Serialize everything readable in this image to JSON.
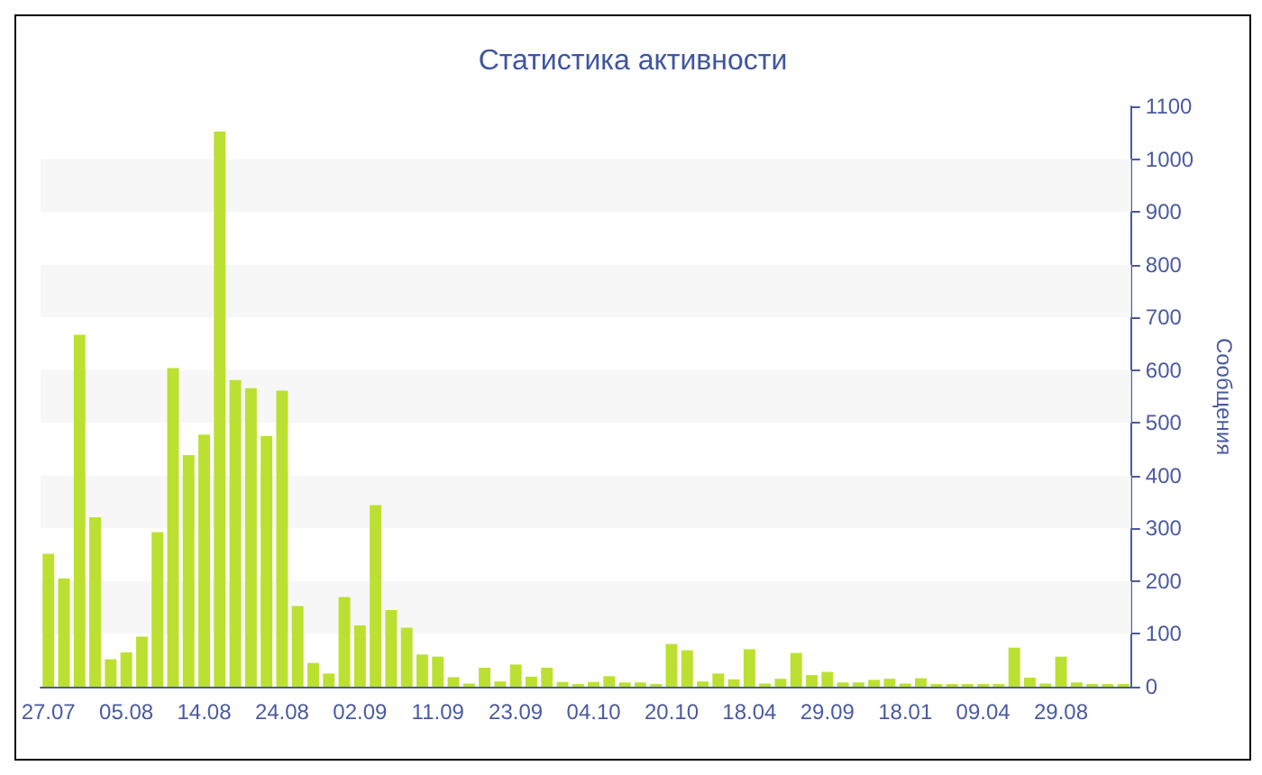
{
  "chart_data": {
    "type": "bar",
    "title": "Статистика активности",
    "ylabel": "Сообщения",
    "categories": [
      "27.07",
      null,
      null,
      null,
      null,
      "05.08",
      null,
      null,
      null,
      null,
      "14.08",
      null,
      null,
      null,
      null,
      "24.08",
      null,
      null,
      null,
      null,
      "02.09",
      null,
      null,
      null,
      null,
      "11.09",
      null,
      null,
      null,
      null,
      "23.09",
      null,
      null,
      null,
      null,
      "04.10",
      null,
      null,
      null,
      null,
      "20.10",
      null,
      null,
      null,
      null,
      "18.04",
      null,
      null,
      null,
      null,
      "29.09",
      null,
      null,
      null,
      null,
      "18.01",
      null,
      null,
      null,
      null,
      "09.04",
      null,
      null,
      null,
      null,
      "29.08",
      null,
      null,
      null,
      null
    ],
    "values": [
      252,
      205,
      667,
      321,
      52,
      65,
      95,
      293,
      604,
      439,
      478,
      1052,
      581,
      566,
      475,
      561,
      153,
      45,
      25,
      170,
      116,
      344,
      145,
      112,
      61,
      57,
      18,
      6,
      36,
      10,
      42,
      19,
      36,
      9,
      5,
      9,
      20,
      8,
      8,
      5,
      81,
      69,
      10,
      25,
      14,
      71,
      6,
      15,
      64,
      22,
      28,
      8,
      8,
      13,
      15,
      6,
      16,
      5,
      5,
      5,
      5,
      5,
      74,
      17,
      6,
      57,
      8,
      5,
      5,
      5
    ],
    "color": "#bce031",
    "ylim": [
      0,
      1100
    ],
    "yticks": [
      0,
      100,
      200,
      300,
      400,
      500,
      600,
      700,
      800,
      900,
      1000,
      1100
    ],
    "bands": [
      {
        "axis": "y",
        "from": 100,
        "to": 200,
        "color": "#f7f7f7"
      },
      {
        "axis": "y",
        "from": 300,
        "to": 400,
        "color": "#f7f7f7"
      },
      {
        "axis": "y",
        "from": 500,
        "to": 600,
        "color": "#f7f7f7"
      },
      {
        "axis": "y",
        "from": 700,
        "to": 800,
        "color": "#f7f7f7"
      },
      {
        "axis": "y",
        "from": 900,
        "to": 1000,
        "color": "#f7f7f7"
      }
    ]
  }
}
